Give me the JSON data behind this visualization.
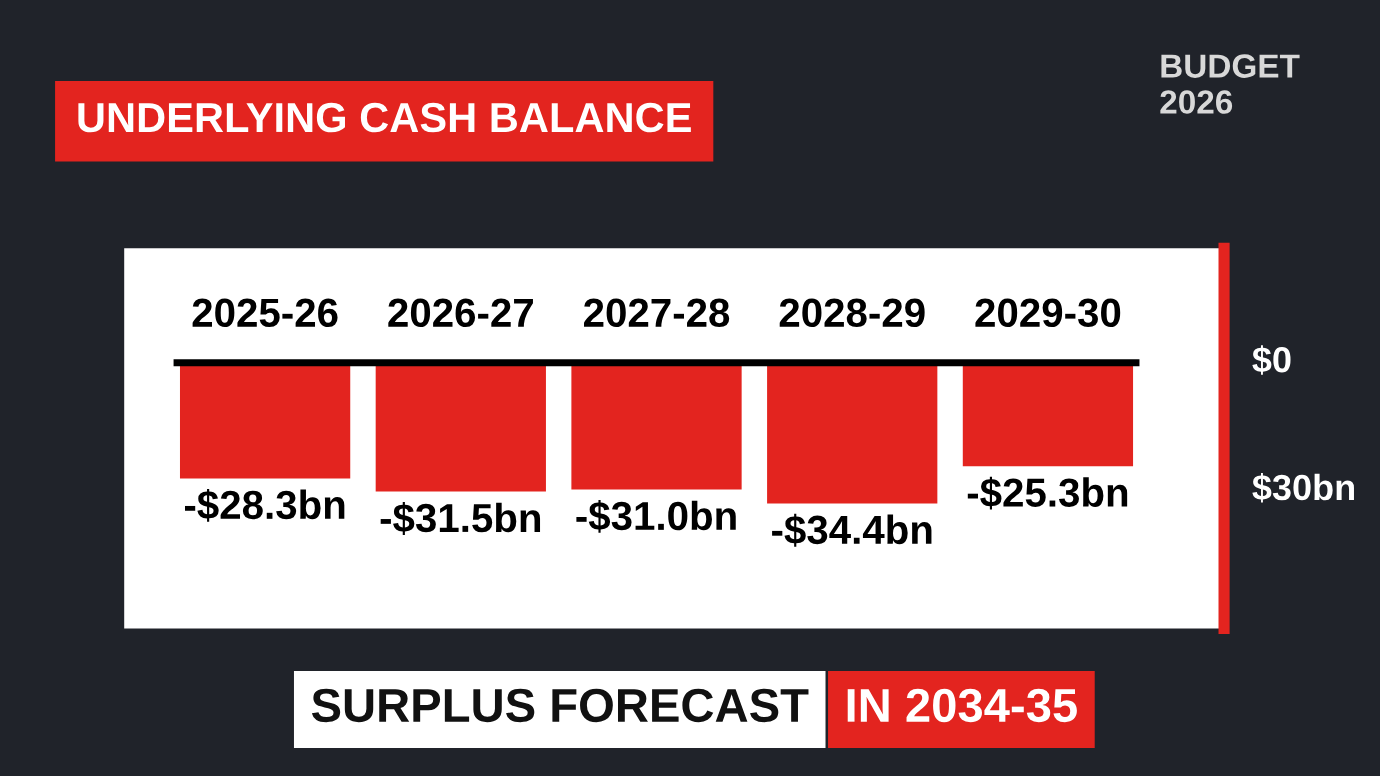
{
  "chart_data": {
    "type": "bar",
    "title": "UNDERLYING CASH BALANCE",
    "categories": [
      "2025-26",
      "2026-27",
      "2027-28",
      "2028-29",
      "2029-30"
    ],
    "values": [
      -28.3,
      -31.5,
      -31.0,
      -34.4,
      -25.3
    ],
    "value_labels": [
      "-$28.3bn",
      "-$31.5bn",
      "-$31.0bn",
      "-$34.4bn",
      "-$25.3bn"
    ],
    "color": "#e3241f",
    "ylim": [
      -65,
      28
    ],
    "grid": false,
    "legend": false,
    "annotations": [
      "SURPLUS FORECAST",
      "IN 2034-35",
      "BUDGET 2026",
      "$0",
      "$30bn"
    ]
  }
}
